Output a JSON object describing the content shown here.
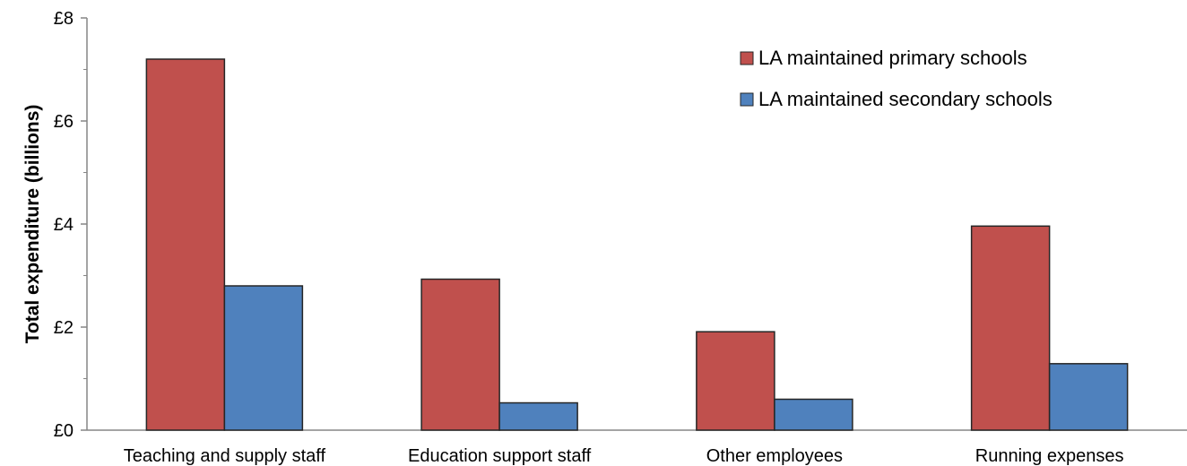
{
  "chart_data": {
    "type": "bar",
    "categories": [
      "Teaching and supply staff",
      "Education support staff",
      "Other employees",
      "Running expenses"
    ],
    "series": [
      {
        "name": "LA maintained primary schools",
        "values": [
          7.2,
          2.93,
          1.91,
          3.96
        ],
        "color": "#c0504d"
      },
      {
        "name": "LA maintained secondary schools",
        "values": [
          2.8,
          0.53,
          0.6,
          1.29
        ],
        "color": "#4f81bd"
      }
    ],
    "title": "",
    "xlabel": "",
    "ylabel": "Total expenditure (billions)",
    "ylim": [
      0,
      8
    ],
    "yticks": [
      0,
      2,
      4,
      6,
      8
    ],
    "ytick_labels": [
      "£0",
      "£2",
      "£4",
      "£6",
      "£8"
    ],
    "grid": false,
    "legend": "top-right"
  }
}
